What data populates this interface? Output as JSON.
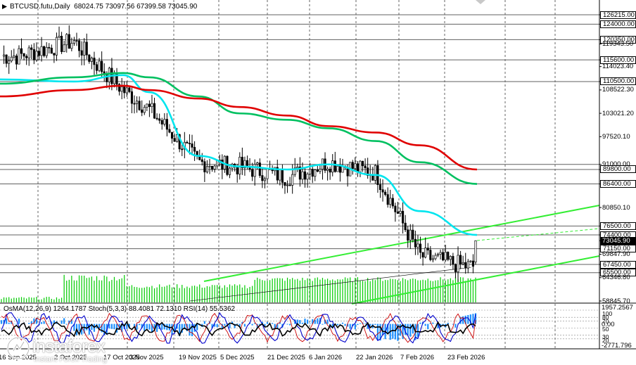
{
  "header": {
    "symbol": "BTCUSD.futu,Daily",
    "ohlc": "68024.75 73097.56 67399.58 73045.90"
  },
  "oscillator_header": "OsMA(12,26,9) 1264.1787  Stoch(5,3,3) 88.4081 72.1310  RSI(14) 55.5362",
  "price_axis": [
    {
      "label": "126215.00",
      "kind": "boxed"
    },
    {
      "label": "124000.00",
      "kind": "boxed"
    },
    {
      "label": "120350.00",
      "kind": "boxed"
    },
    {
      "label": "119343.50",
      "kind": "plain"
    },
    {
      "label": "115600.00",
      "kind": "boxed"
    },
    {
      "label": "114023.40",
      "kind": "plain"
    },
    {
      "label": "110500.00",
      "kind": "boxed"
    },
    {
      "label": "108522.30",
      "kind": "plain"
    },
    {
      "label": "103021.20",
      "kind": "plain"
    },
    {
      "label": "97520.10",
      "kind": "plain"
    },
    {
      "label": "91000.00",
      "kind": "plain"
    },
    {
      "label": "89800.00",
      "kind": "boxed"
    },
    {
      "label": "86400.00",
      "kind": "boxed"
    },
    {
      "label": "80850.10",
      "kind": "plain"
    },
    {
      "label": "76500.00",
      "kind": "boxed"
    },
    {
      "label": "74400.00",
      "kind": "boxed"
    },
    {
      "label": "73045.90",
      "kind": "current"
    },
    {
      "label": "71150.00",
      "kind": "boxed"
    },
    {
      "label": "69847.90",
      "kind": "plain"
    },
    {
      "label": "67450.00",
      "kind": "boxed"
    },
    {
      "label": "65500.00",
      "kind": "boxed"
    },
    {
      "label": "64346.80",
      "kind": "plain"
    },
    {
      "label": "58845.70",
      "kind": "plain"
    }
  ],
  "oscillator_axis": {
    "top": "1957.2567",
    "zero": "0.00",
    "bottom": "-2771.796",
    "levels": [
      "100",
      "80",
      "70",
      "50",
      "30",
      "20"
    ]
  },
  "time_axis": [
    "16 Sep 2025",
    "2 Oct 2025",
    "17 Oct 2025",
    "3 Nov 2025",
    "19 Nov 2025",
    "5 Dec 2025",
    "21 Dec 2025",
    "6 Jan 2026",
    "22 Jan 2026",
    "7 Feb 2026",
    "23 Feb 2026"
  ],
  "watermark": {
    "brand": "instaforex",
    "tagline": "Instant Forex Trading"
  },
  "colors": {
    "ema_fast": "#00e5ee",
    "ema_mid": "#00c060",
    "ema_slow": "#e00000",
    "channel": "#33ee33",
    "candles": "#000000",
    "volume": "#00cc00",
    "osma": "#1e90ff",
    "stoch_main": "#0000cc",
    "stoch_signal": "#cc0000",
    "rsi": "#000000"
  },
  "chart_data": [
    {
      "type": "line",
      "name": "main",
      "y_range": [
        58845.7,
        126215.0
      ],
      "dates": [
        "16 Sep 2025",
        "2 Oct 2025",
        "17 Oct 2025",
        "3 Nov 2025",
        "19 Nov 2025",
        "5 Dec 2025",
        "21 Dec 2025",
        "6 Jan 2026",
        "22 Jan 2026",
        "7 Feb 2026",
        "23 Feb 2026"
      ],
      "close": [
        116500,
        120000,
        108500,
        104000,
        91500,
        90500,
        88000,
        91500,
        89000,
        69500,
        67000
      ],
      "series": [
        {
          "values": [
            111000,
            110500,
            112000,
            108000,
            93000,
            90500,
            89800,
            91000,
            88500,
            80000,
            74400
          ]
        },
        {
          "values": [
            110000,
            111500,
            112500,
            111500,
            107000,
            103000,
            101500,
            99500,
            96500,
            91500,
            86400
          ]
        },
        {
          "values": [
            107000,
            108500,
            109500,
            108500,
            106500,
            104500,
            102500,
            100000,
            98500,
            95500,
            89800
          ]
        }
      ],
      "last": {
        "open": 68024.75,
        "high": 73097.56,
        "low": 67399.58,
        "close": 73045.9
      }
    },
    {
      "type": "line",
      "name": "oscillators",
      "y_range": [
        -2771.796,
        1957.2567
      ],
      "values": {
        "osma": 1264.1787,
        "stoch_main": 88.4081,
        "stoch_signal": 72.131,
        "rsi": 55.5362
      }
    }
  ]
}
